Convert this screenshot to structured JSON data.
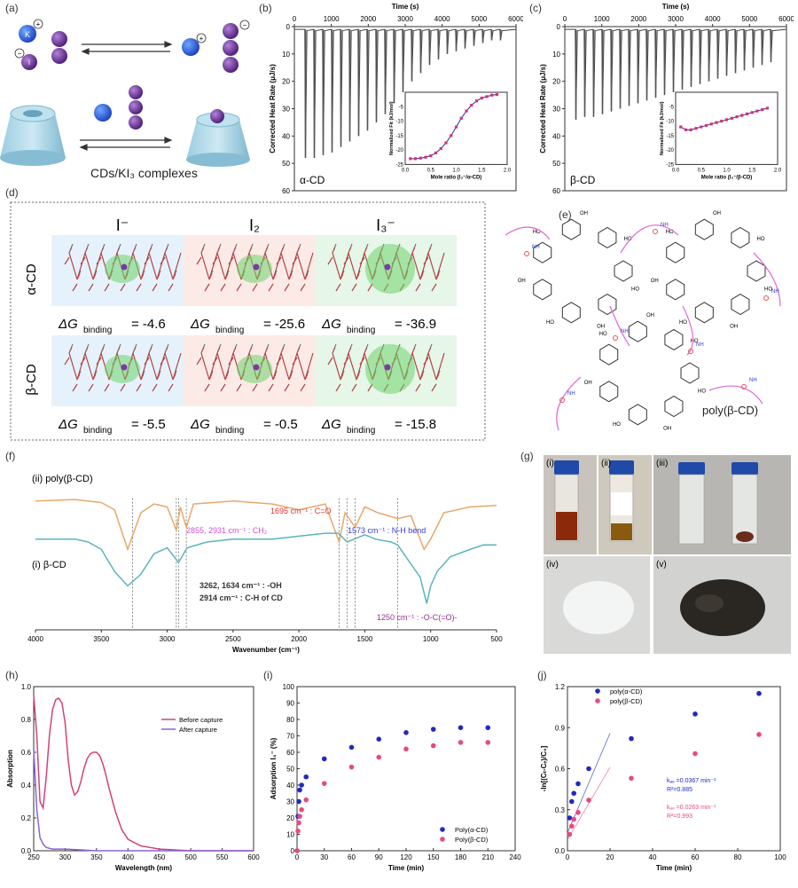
{
  "panel_labels": {
    "a": "(a)",
    "b": "(b)",
    "c": "(c)",
    "d": "(d)",
    "e": "(e)",
    "f": "(f)",
    "g": "(g)",
    "h": "(h)",
    "i": "(i)",
    "j": "(j)"
  },
  "panel_a": {
    "k_label": "K",
    "k_charge": "+",
    "i_label": "I",
    "i_charge": "−",
    "caption": "CDs/KI₃ complexes"
  },
  "chart_data": [
    {
      "id": "b",
      "type": "line",
      "title": "",
      "top_xlabel": "Time (s)",
      "top_xticks": [
        0,
        1000,
        2000,
        3000,
        4000,
        5000,
        6000
      ],
      "ylabel": "Corrected Heat Rate (μJ/s)",
      "yticks": [
        0,
        10,
        20,
        30,
        40,
        50,
        60
      ],
      "ylim": [
        0,
        60
      ],
      "label": "α-CD",
      "peaks_s": [
        300,
        540,
        780,
        1020,
        1260,
        1500,
        1740,
        1980,
        2220,
        2460,
        2700,
        2940,
        3180,
        3420,
        3660,
        3900,
        4140,
        4380,
        4620,
        4860,
        5100,
        5340,
        5580
      ],
      "peak_depth": [
        48,
        48,
        47,
        46,
        44,
        42,
        40,
        38,
        35,
        32,
        28,
        24,
        20,
        17,
        14,
        12,
        10,
        9,
        8,
        7,
        6,
        5,
        5
      ],
      "inset": {
        "xlabel": "Mole ratio (I₃⁻/α-CD)",
        "ylabel": "Normalized Fit (kJ/mol)",
        "xticks": [
          0.0,
          0.5,
          1.0,
          1.5,
          2.0
        ],
        "yticks": [
          -5,
          -10,
          -15,
          -20,
          -25
        ],
        "x": [
          0.1,
          0.2,
          0.3,
          0.4,
          0.5,
          0.6,
          0.7,
          0.8,
          0.9,
          1.0,
          1.1,
          1.2,
          1.3,
          1.4,
          1.5,
          1.6,
          1.7,
          1.8
        ],
        "y": [
          -23,
          -23,
          -22.8,
          -22.5,
          -22,
          -21,
          -19.5,
          -17.5,
          -15,
          -12,
          -9,
          -6.5,
          -4.5,
          -3,
          -2,
          -1.5,
          -1,
          -0.8
        ]
      }
    },
    {
      "id": "c",
      "type": "line",
      "title": "",
      "top_xlabel": "Time (s)",
      "top_xticks": [
        0,
        1000,
        2000,
        3000,
        4000,
        5000,
        6000
      ],
      "ylabel": "Corrected Heat Rate (μJ/s)",
      "yticks": [
        0,
        10,
        20,
        30,
        40,
        50,
        60
      ],
      "ylim": [
        0,
        60
      ],
      "label": "β-CD",
      "peaks_s": [
        300,
        540,
        780,
        1020,
        1260,
        1500,
        1740,
        1980,
        2220,
        2460,
        2700,
        2940,
        3180,
        3420,
        3660,
        3900,
        4140,
        4380,
        4620,
        4860,
        5100,
        5340,
        5580
      ],
      "peak_depth": [
        34,
        33,
        33,
        32,
        31,
        30,
        29,
        28,
        27,
        26,
        25,
        24,
        23,
        22,
        21,
        20,
        19,
        18,
        17,
        16,
        15,
        14,
        13
      ],
      "inset": {
        "xlabel": "Mole ratio (I₃⁻/β-CD)",
        "ylabel": "Normalized Fit (kJ/mol)",
        "xticks": [
          0.0,
          0.5,
          1.0,
          1.5,
          2.0
        ],
        "yticks": [
          -5,
          -10,
          -15,
          -20,
          -25
        ],
        "x": [
          0.1,
          0.2,
          0.3,
          0.4,
          0.5,
          0.6,
          0.7,
          0.8,
          0.9,
          1.0,
          1.1,
          1.2,
          1.3,
          1.4,
          1.5,
          1.6,
          1.7,
          1.8
        ],
        "y": [
          -12,
          -13,
          -13,
          -12.5,
          -12,
          -11.5,
          -11,
          -10.5,
          -10,
          -9.5,
          -9,
          -8.5,
          -8,
          -7.5,
          -7,
          -6.5,
          -6,
          -5.5
        ]
      }
    },
    {
      "id": "f",
      "type": "line",
      "xlabel": "Wavenumber (cm⁻¹)",
      "xticks": [
        4000,
        3500,
        3000,
        2500,
        2000,
        1500,
        1000,
        500
      ],
      "series": [
        {
          "name": "(ii) poly(β-CD)",
          "color": "#e8a86a",
          "x": [
            4000,
            3700,
            3500,
            3400,
            3300,
            3200,
            3100,
            3000,
            2931,
            2900,
            2855,
            2800,
            2500,
            2200,
            2000,
            1800,
            1695,
            1650,
            1573,
            1500,
            1400,
            1250,
            1150,
            1050,
            1000,
            900,
            700,
            500
          ],
          "y": [
            0.88,
            0.89,
            0.87,
            0.82,
            0.55,
            0.8,
            0.86,
            0.84,
            0.68,
            0.84,
            0.7,
            0.86,
            0.88,
            0.86,
            0.82,
            0.86,
            0.6,
            0.8,
            0.7,
            0.84,
            0.8,
            0.76,
            0.78,
            0.55,
            0.62,
            0.8,
            0.84,
            0.85
          ]
        },
        {
          "name": "(i) β-CD",
          "color": "#5ab5b8",
          "x": [
            4000,
            3700,
            3600,
            3500,
            3400,
            3300,
            3200,
            3100,
            3000,
            2914,
            2850,
            2700,
            2500,
            2200,
            2000,
            1800,
            1700,
            1634,
            1500,
            1420,
            1300,
            1250,
            1150,
            1080,
            1030,
            1000,
            950,
            850,
            700,
            600,
            500
          ],
          "y": [
            0.62,
            0.62,
            0.6,
            0.55,
            0.4,
            0.3,
            0.38,
            0.52,
            0.56,
            0.46,
            0.56,
            0.6,
            0.62,
            0.62,
            0.64,
            0.66,
            0.66,
            0.6,
            0.65,
            0.62,
            0.6,
            0.58,
            0.45,
            0.36,
            0.18,
            0.3,
            0.4,
            0.5,
            0.55,
            0.58,
            0.58
          ]
        }
      ],
      "annotations": {
        "co": "1695 cm⁻¹ : C=O",
        "ch2": "2855, 2931 cm⁻¹ : CH₂",
        "nh": "1573 cm⁻¹ : N-H bend",
        "oh": "3262, 1634 cm⁻¹ : -OH",
        "ch": "2914 cm⁻¹ : C-H of CD",
        "ester": "1250 cm⁻¹ : -O-C(=O)-"
      },
      "guides": [
        3262,
        2931,
        2914,
        2855,
        1695,
        1634,
        1573,
        1250
      ]
    },
    {
      "id": "h",
      "type": "line",
      "xlabel": "Wavelength (nm)",
      "ylabel": "Absorption",
      "xticks": [
        250,
        300,
        350,
        400,
        450,
        500,
        550,
        600
      ],
      "yticks": [
        0.0,
        0.2,
        0.4,
        0.6,
        0.8,
        1.0
      ],
      "xlim": [
        250,
        600
      ],
      "ylim": [
        0,
        1.0
      ],
      "series": [
        {
          "name": "Before capture",
          "color": "#d4407a",
          "x": [
            250,
            255,
            260,
            265,
            270,
            275,
            280,
            285,
            290,
            295,
            300,
            305,
            310,
            315,
            320,
            325,
            330,
            335,
            340,
            345,
            350,
            355,
            360,
            365,
            370,
            380,
            390,
            400,
            420,
            450,
            500,
            550,
            600
          ],
          "y": [
            0.95,
            0.7,
            0.3,
            0.26,
            0.45,
            0.7,
            0.86,
            0.92,
            0.93,
            0.9,
            0.78,
            0.55,
            0.4,
            0.34,
            0.36,
            0.42,
            0.5,
            0.56,
            0.59,
            0.6,
            0.6,
            0.58,
            0.53,
            0.46,
            0.38,
            0.24,
            0.13,
            0.07,
            0.03,
            0.01,
            0.0,
            0.0,
            0.0
          ]
        },
        {
          "name": "After capture",
          "color": "#8a63d2",
          "x": [
            250,
            255,
            260,
            265,
            270,
            280,
            300,
            350,
            400,
            500,
            600
          ],
          "y": [
            0.62,
            0.25,
            0.08,
            0.04,
            0.02,
            0.01,
            0.01,
            0.0,
            0.0,
            0.0,
            0.0
          ]
        }
      ]
    },
    {
      "id": "i",
      "type": "scatter",
      "xlabel": "Time (min)",
      "ylabel": "Adsorption I₃⁻ (%)",
      "xticks": [
        0,
        30,
        60,
        90,
        120,
        150,
        180,
        210,
        240
      ],
      "yticks": [
        0,
        10,
        20,
        30,
        40,
        50,
        60,
        70,
        80,
        90,
        100
      ],
      "xlim": [
        0,
        240
      ],
      "ylim": [
        0,
        100
      ],
      "series": [
        {
          "name": "Poly(α-CD)",
          "color": "#1f2bbf",
          "x": [
            0,
            1,
            2,
            3,
            5,
            10,
            30,
            60,
            90,
            120,
            150,
            180,
            210
          ],
          "y": [
            0,
            21,
            30,
            37,
            40,
            45,
            56,
            63,
            68,
            72,
            74,
            75,
            75
          ]
        },
        {
          "name": "Poly(β-CD)",
          "color": "#e84a7f",
          "x": [
            0,
            1,
            2,
            3,
            5,
            10,
            30,
            60,
            90,
            120,
            150,
            180,
            210
          ],
          "y": [
            0,
            12,
            17,
            21,
            25,
            31,
            41,
            51,
            57,
            62,
            64,
            66,
            66
          ]
        }
      ]
    },
    {
      "id": "j",
      "type": "scatter",
      "xlabel": "Time (min)",
      "ylabel": "-ln[(Cₜ-Cₑ)/C₀]",
      "xticks": [
        0,
        20,
        40,
        60,
        80,
        100
      ],
      "yticks": [
        0.0,
        0.3,
        0.6,
        0.9,
        1.2
      ],
      "xlim": [
        0,
        100
      ],
      "ylim": [
        0,
        1.2
      ],
      "series": [
        {
          "name": "poly(α-CD)",
          "color": "#1f2bbf",
          "x": [
            1,
            2,
            3,
            5,
            10,
            30,
            60,
            90
          ],
          "y": [
            0.24,
            0.36,
            0.42,
            0.49,
            0.6,
            0.82,
            1.0,
            1.15
          ],
          "fit": {
            "x": [
              0,
              20
            ],
            "y": [
              0.13,
              0.86
            ]
          }
        },
        {
          "name": "poly(β-CD)",
          "color": "#e84a7f",
          "x": [
            1,
            2,
            3,
            5,
            10,
            30,
            60,
            90
          ],
          "y": [
            0.12,
            0.18,
            0.23,
            0.28,
            0.37,
            0.53,
            0.71,
            0.85
          ],
          "fit": {
            "x": [
              0,
              20
            ],
            "y": [
              0.08,
              0.61
            ]
          }
        }
      ],
      "annotations": {
        "a_k": "kₐₑ =0.0367 min⁻¹",
        "a_r": "R²=0.885",
        "b_k": "kₐₑ =0.0263 min⁻¹",
        "b_r": "R²=0.993"
      }
    }
  ],
  "panel_d": {
    "columns": [
      "I⁻",
      "I₂",
      "I₃⁻"
    ],
    "rows": [
      "α-CD",
      "β-CD"
    ],
    "prefix": "ΔG",
    "sub": "binding",
    "values": [
      [
        "-4.6",
        "-25.6",
        "-36.9"
      ],
      [
        "-5.5",
        "-0.5",
        "-15.8"
      ]
    ]
  },
  "panel_e": {
    "label": "poly(β-CD)",
    "oh": "OH",
    "ho": "HO",
    "nh": "NH",
    "o": "O"
  },
  "panel_g": {
    "labels": [
      "(i)",
      "(ii)",
      "(iii)",
      "(iv)",
      "(v)"
    ]
  }
}
